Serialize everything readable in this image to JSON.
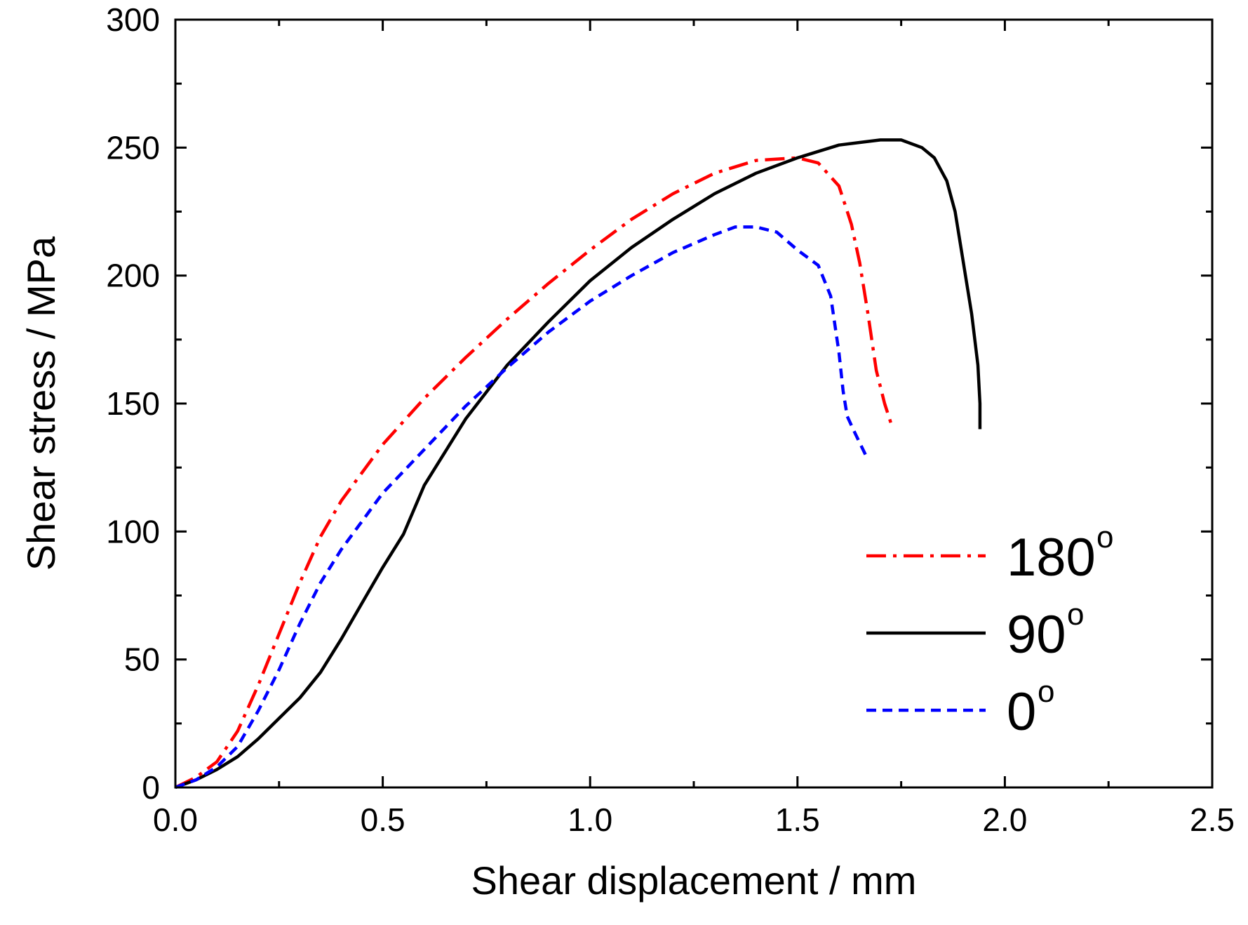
{
  "chart_data": {
    "type": "line",
    "title": "",
    "xlabel": "Shear displacement / mm",
    "ylabel": "Shear stress / MPa",
    "xlim": [
      0,
      2.5
    ],
    "ylim": [
      0,
      300
    ],
    "xticks": [
      0.0,
      0.5,
      1.0,
      1.5,
      2.0,
      2.5
    ],
    "xtick_labels": [
      "0.0",
      "0.5",
      "1.0",
      "1.5",
      "2.0",
      "2.5"
    ],
    "xminor": [
      0.25,
      0.75,
      1.25,
      1.75,
      2.25
    ],
    "yticks": [
      0,
      50,
      100,
      150,
      200,
      250,
      300
    ],
    "ytick_labels": [
      "0",
      "50",
      "100",
      "150",
      "200",
      "250",
      "300"
    ],
    "yminor": [
      25,
      75,
      125,
      175,
      225,
      275
    ],
    "legend_position": "right-lower",
    "series": [
      {
        "name": "180",
        "sup": "o",
        "color": "#ff0000",
        "style": "dashdot",
        "x": [
          0,
          0.05,
          0.1,
          0.15,
          0.2,
          0.25,
          0.3,
          0.35,
          0.4,
          0.5,
          0.6,
          0.7,
          0.8,
          0.9,
          1.0,
          1.1,
          1.2,
          1.3,
          1.4,
          1.5,
          1.55,
          1.6,
          1.63,
          1.65,
          1.67,
          1.69,
          1.71,
          1.73
        ],
        "y": [
          0,
          4,
          10,
          22,
          40,
          60,
          80,
          98,
          112,
          134,
          152,
          168,
          183,
          197,
          210,
          222,
          232,
          240,
          245,
          246,
          244,
          235,
          220,
          205,
          185,
          163,
          150,
          140
        ]
      },
      {
        "name": "90",
        "sup": "o",
        "color": "#000000",
        "style": "solid",
        "x": [
          0,
          0.05,
          0.1,
          0.15,
          0.2,
          0.25,
          0.3,
          0.35,
          0.4,
          0.45,
          0.5,
          0.55,
          0.6,
          0.7,
          0.8,
          0.9,
          1.0,
          1.1,
          1.2,
          1.3,
          1.4,
          1.5,
          1.6,
          1.65,
          1.7,
          1.75,
          1.8,
          1.83,
          1.86,
          1.88,
          1.9,
          1.92,
          1.935,
          1.94,
          1.94
        ],
        "y": [
          0,
          3,
          7,
          12,
          19,
          27,
          35,
          45,
          58,
          72,
          86,
          99,
          118,
          144,
          165,
          182,
          198,
          211,
          222,
          232,
          240,
          246,
          251,
          252,
          253,
          253,
          250,
          246,
          237,
          225,
          205,
          185,
          165,
          150,
          140
        ]
      },
      {
        "name": "0",
        "sup": "o",
        "color": "#0000ff",
        "style": "dashed",
        "x": [
          0,
          0.05,
          0.1,
          0.15,
          0.2,
          0.25,
          0.3,
          0.35,
          0.4,
          0.5,
          0.6,
          0.7,
          0.8,
          0.9,
          1.0,
          1.1,
          1.2,
          1.3,
          1.35,
          1.4,
          1.45,
          1.5,
          1.55,
          1.58,
          1.6,
          1.61,
          1.62,
          1.64,
          1.67
        ],
        "y": [
          0,
          3,
          8,
          16,
          30,
          46,
          64,
          80,
          93,
          115,
          132,
          149,
          164,
          178,
          190,
          200,
          209,
          216,
          219,
          219,
          217,
          210,
          204,
          192,
          170,
          155,
          145,
          138,
          128
        ]
      }
    ]
  }
}
